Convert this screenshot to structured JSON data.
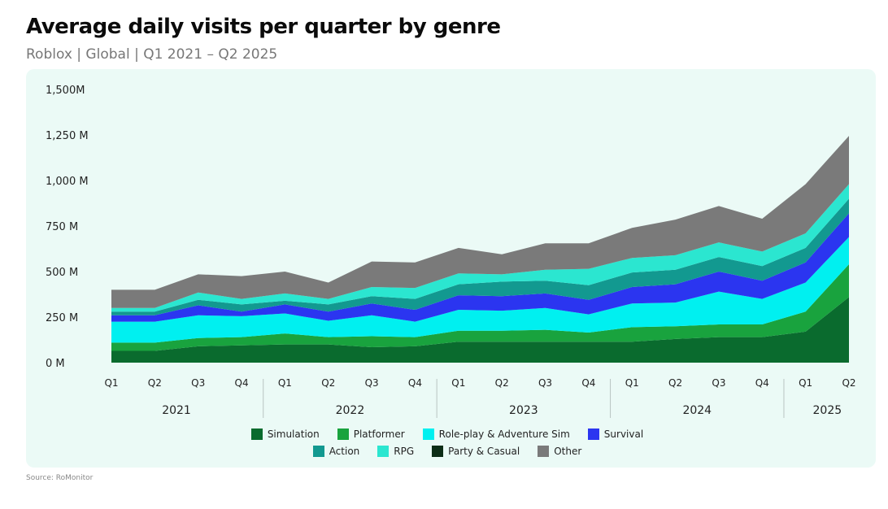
{
  "header": {
    "title": "Average daily visits per quarter by genre",
    "subtitle": "Roblox | Global | Q1 2021 – Q2 2025"
  },
  "footer": {
    "source": "Source: RoMonitor"
  },
  "chart_data": {
    "type": "area",
    "stacked": true,
    "title": "Average daily visits per quarter by genre",
    "subtitle": "Roblox | Global | Q1 2021 – Q2 2025",
    "categories": [
      "Q1",
      "Q2",
      "Q3",
      "Q4",
      "Q1",
      "Q2",
      "Q3",
      "Q4",
      "Q1",
      "Q2",
      "Q3",
      "Q4",
      "Q1",
      "Q2",
      "Q3",
      "Q4",
      "Q1",
      "Q2"
    ],
    "years": [
      {
        "label": "2021",
        "start": 0,
        "end": 3
      },
      {
        "label": "2022",
        "start": 4,
        "end": 7
      },
      {
        "label": "2023",
        "start": 8,
        "end": 11
      },
      {
        "label": "2024",
        "start": 12,
        "end": 15
      },
      {
        "label": "2025",
        "start": 16,
        "end": 17
      }
    ],
    "y_ticks": [
      {
        "value": 0,
        "label": "0 M"
      },
      {
        "value": 250,
        "label": "250 M"
      },
      {
        "value": 500,
        "label": "500 M"
      },
      {
        "value": 750,
        "label": "750 M"
      },
      {
        "value": 1000,
        "label": "1,000 M"
      },
      {
        "value": 1250,
        "label": "1,250 M"
      },
      {
        "value": 1500,
        "label": "1,500M"
      }
    ],
    "ylim": [
      0,
      1500
    ],
    "grid": false,
    "legend_position": "bottom",
    "series": [
      {
        "name": "Simulation",
        "color": "#0a6b2e",
        "values": [
          65,
          65,
          90,
          95,
          100,
          100,
          85,
          90,
          115,
          115,
          115,
          115,
          115,
          130,
          140,
          140,
          170,
          360
        ]
      },
      {
        "name": "Platformer",
        "color": "#19a33e",
        "values": [
          45,
          45,
          45,
          45,
          60,
          40,
          60,
          50,
          60,
          60,
          65,
          50,
          80,
          70,
          70,
          70,
          110,
          180
        ]
      },
      {
        "name": "Role-play & Adventure Sim",
        "color": "#00f0f0",
        "values": [
          115,
          115,
          125,
          115,
          110,
          90,
          115,
          85,
          115,
          110,
          120,
          100,
          130,
          130,
          180,
          140,
          160,
          150
        ]
      },
      {
        "name": "Survival",
        "color": "#2b35f0",
        "values": [
          35,
          35,
          55,
          25,
          50,
          50,
          65,
          65,
          80,
          80,
          80,
          80,
          90,
          100,
          110,
          100,
          110,
          130
        ]
      },
      {
        "name": "Action",
        "color": "#129990",
        "values": [
          20,
          20,
          30,
          40,
          20,
          40,
          40,
          60,
          60,
          80,
          70,
          80,
          80,
          80,
          80,
          80,
          80,
          80
        ]
      },
      {
        "name": "RPG",
        "color": "#2be6d0",
        "values": [
          20,
          20,
          40,
          30,
          40,
          30,
          50,
          60,
          60,
          40,
          60,
          90,
          80,
          80,
          80,
          80,
          80,
          80
        ]
      },
      {
        "name": "Party & Casual",
        "color": "#0d2e17",
        "values": [
          0,
          0,
          0,
          0,
          0,
          0,
          0,
          0,
          0,
          0,
          0,
          0,
          0,
          0,
          0,
          0,
          0,
          0
        ]
      },
      {
        "name": "Other",
        "color": "#7a7a7a",
        "values": [
          100,
          100,
          100,
          125,
          120,
          90,
          140,
          140,
          140,
          110,
          145,
          140,
          165,
          195,
          200,
          180,
          270,
          265
        ]
      }
    ]
  }
}
